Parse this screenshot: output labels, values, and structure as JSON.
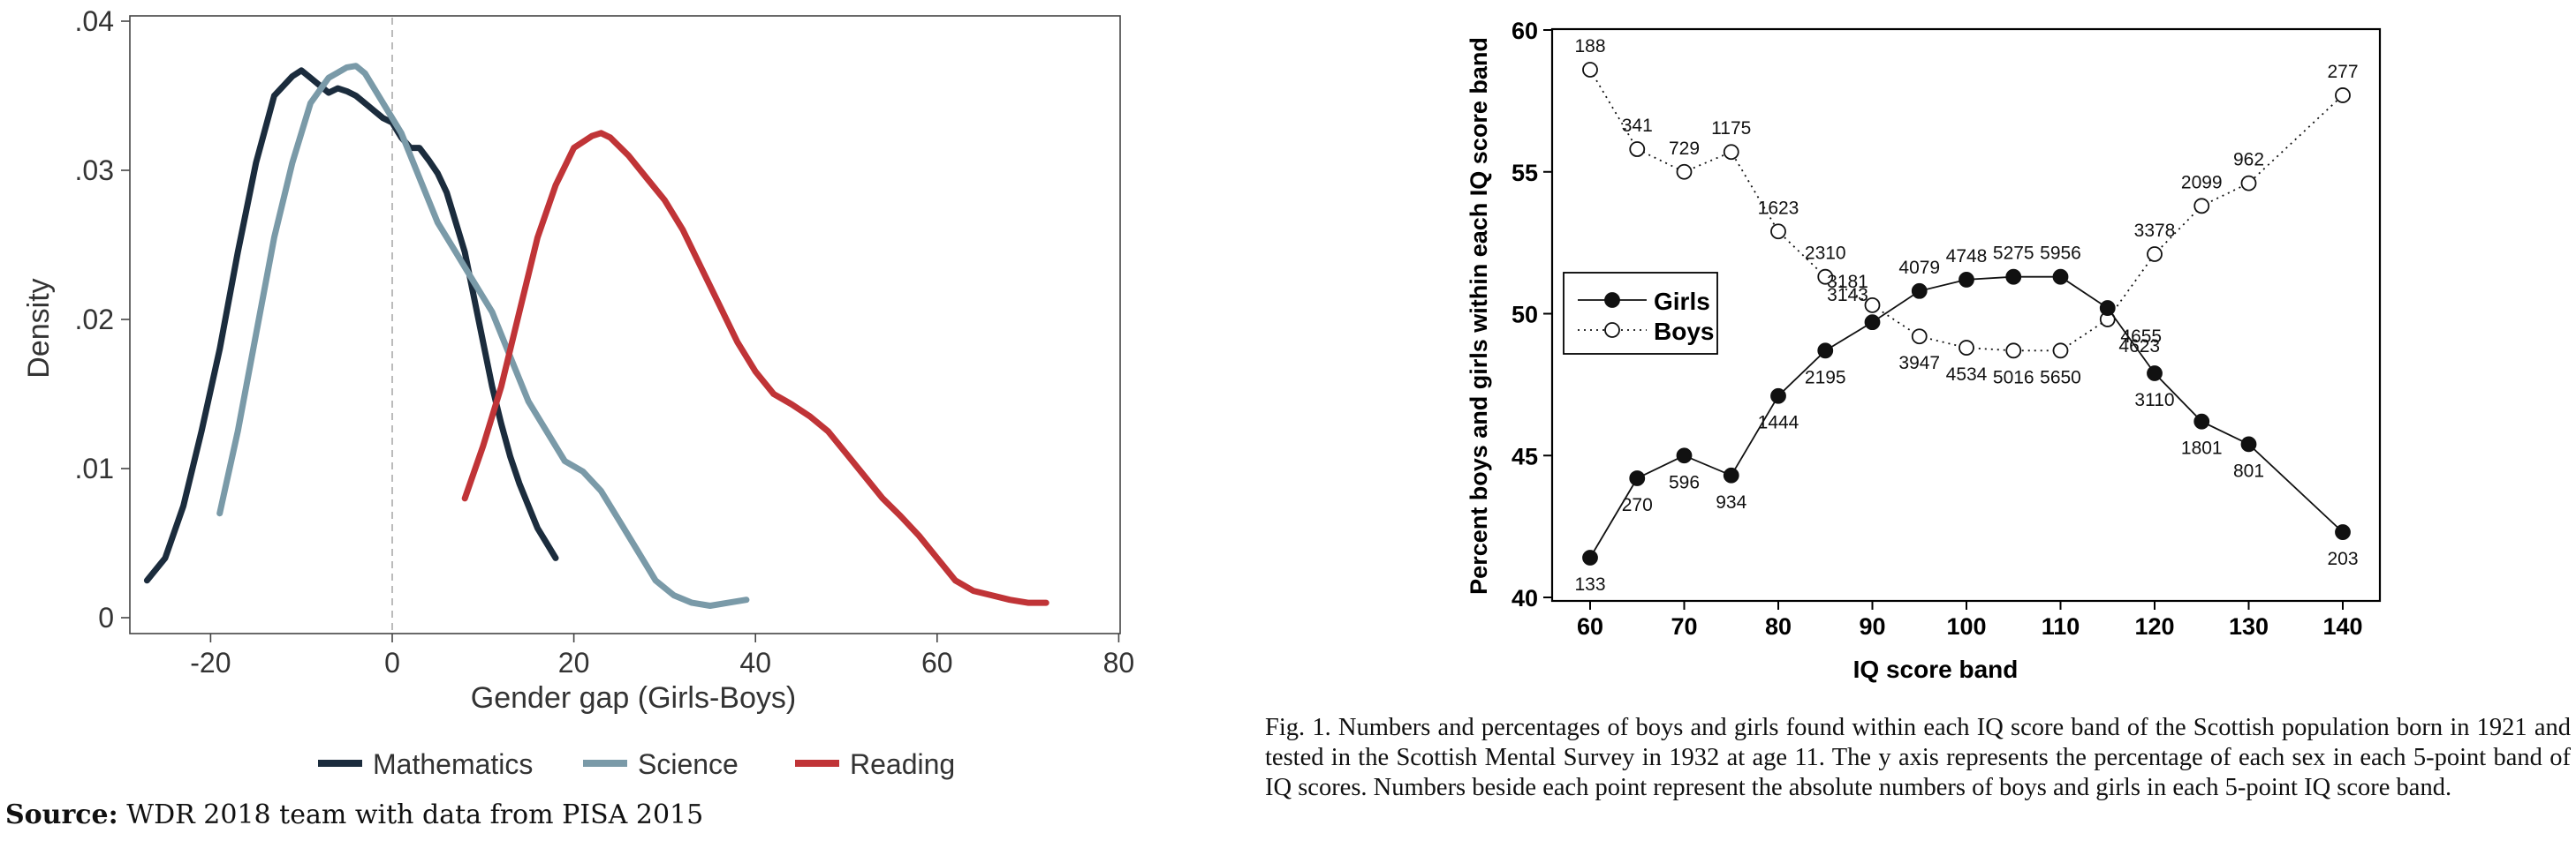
{
  "chart_data": [
    {
      "type": "line",
      "title": "",
      "xlabel": "Gender gap (Girls-Boys)",
      "ylabel": "Density",
      "xlim": [
        -30,
        80
      ],
      "ylim": [
        -0.001,
        0.0405
      ],
      "x_ticks": [
        -20,
        0,
        20,
        40,
        60,
        80
      ],
      "x_tick_labels": [
        "-20",
        "0",
        "20",
        "40",
        "60",
        "80"
      ],
      "y_ticks": [
        0,
        0.01,
        0.02,
        0.03,
        0.04
      ],
      "y_tick_labels": [
        "0",
        ".01",
        ".02",
        ".03",
        ".04"
      ],
      "reference_line_x": 0,
      "legend_position": "bottom",
      "series": [
        {
          "name": "Mathematics",
          "color": "#1b2c3d",
          "x": [
            -27,
            -25,
            -23,
            -21,
            -19,
            -17,
            -15,
            -13,
            -11,
            -10,
            -9,
            -8,
            -7,
            -6,
            -5,
            -4,
            -3,
            -2,
            -1,
            0,
            1,
            2,
            3,
            4,
            5,
            6,
            7,
            8,
            9,
            10,
            11,
            12,
            13,
            14,
            15,
            16,
            17,
            18
          ],
          "y": [
            0.0025,
            0.004,
            0.0075,
            0.0125,
            0.018,
            0.0245,
            0.0305,
            0.035,
            0.0363,
            0.0367,
            0.0362,
            0.0357,
            0.0352,
            0.0355,
            0.0353,
            0.035,
            0.0345,
            0.034,
            0.0335,
            0.0332,
            0.0322,
            0.0315,
            0.0315,
            0.0307,
            0.0298,
            0.0285,
            0.0265,
            0.0245,
            0.0215,
            0.0185,
            0.0155,
            0.013,
            0.0108,
            0.009,
            0.0075,
            0.006,
            0.005,
            0.004
          ]
        },
        {
          "name": "Science",
          "color": "#7a9aa8",
          "x": [
            -19,
            -17,
            -15,
            -13,
            -11,
            -9,
            -7,
            -5,
            -4,
            -3,
            -1,
            1,
            3,
            5,
            7,
            9,
            11,
            13,
            15,
            17,
            19,
            21,
            23,
            25,
            27,
            29,
            31,
            33,
            35,
            37,
            39
          ],
          "y": [
            0.007,
            0.0125,
            0.019,
            0.0255,
            0.0305,
            0.0345,
            0.0362,
            0.0369,
            0.037,
            0.0365,
            0.0345,
            0.0325,
            0.0295,
            0.0265,
            0.0245,
            0.0225,
            0.0205,
            0.0175,
            0.0145,
            0.0125,
            0.0105,
            0.0098,
            0.0085,
            0.0065,
            0.0045,
            0.0025,
            0.0015,
            0.001,
            0.0008,
            0.001,
            0.0012
          ]
        },
        {
          "name": "Reading",
          "color": "#c03437",
          "x": [
            8,
            10,
            12,
            14,
            16,
            18,
            20,
            22,
            23,
            24,
            26,
            28,
            30,
            32,
            34,
            36,
            38,
            40,
            42,
            44,
            46,
            48,
            50,
            52,
            54,
            56,
            58,
            60,
            62,
            64,
            66,
            68,
            70,
            72
          ],
          "y": [
            0.008,
            0.0115,
            0.0155,
            0.0205,
            0.0255,
            0.029,
            0.0315,
            0.0323,
            0.0325,
            0.0322,
            0.031,
            0.0295,
            0.028,
            0.026,
            0.0235,
            0.021,
            0.0185,
            0.0165,
            0.015,
            0.0143,
            0.0135,
            0.0125,
            0.011,
            0.0095,
            0.008,
            0.0068,
            0.0055,
            0.004,
            0.0025,
            0.0018,
            0.0015,
            0.0012,
            0.001,
            0.001
          ]
        }
      ]
    },
    {
      "type": "line",
      "title": "",
      "xlabel": "IQ score band",
      "ylabel": "Percent boys and girls within each IQ score band",
      "xlim": [
        60,
        140
      ],
      "ylim": [
        40,
        60
      ],
      "x_ticks": [
        60,
        70,
        80,
        90,
        100,
        110,
        120,
        130,
        140
      ],
      "x_tick_labels": [
        "60",
        "70",
        "80",
        "90",
        "100",
        "110",
        "120",
        "130",
        "140"
      ],
      "y_ticks": [
        40,
        45,
        50,
        55,
        60
      ],
      "y_tick_labels": [
        "40",
        "45",
        "50",
        "55",
        "60"
      ],
      "legend_position": "left-middle",
      "series": [
        {
          "name": "Girls",
          "marker": "filled-circle",
          "line_style": "solid",
          "x": [
            60,
            65,
            70,
            75,
            80,
            85,
            90,
            95,
            100,
            105,
            110,
            115,
            120,
            125,
            130,
            140
          ],
          "y": [
            41.4,
            44.2,
            45.0,
            44.3,
            47.1,
            48.7,
            49.7,
            50.8,
            51.2,
            51.3,
            51.3,
            50.2,
            47.9,
            46.2,
            45.4,
            42.3
          ],
          "labels": [
            "133",
            "270",
            "596",
            "934",
            "1444",
            "2195",
            "3143",
            "4079",
            "4748",
            "5275",
            "5956",
            "4655",
            "3110",
            "1801",
            "801",
            "203"
          ]
        },
        {
          "name": "Boys",
          "marker": "open-circle",
          "line_style": "dotted",
          "x": [
            60,
            65,
            70,
            75,
            80,
            85,
            90,
            95,
            100,
            105,
            110,
            115,
            120,
            125,
            130,
            140
          ],
          "y": [
            58.6,
            55.8,
            55.0,
            55.7,
            52.9,
            51.3,
            50.3,
            49.2,
            48.8,
            48.7,
            48.7,
            49.8,
            52.1,
            53.8,
            54.6,
            57.7
          ],
          "labels": [
            "188",
            "341",
            "729",
            "1175",
            "1623",
            "2310",
            "3181",
            "3947",
            "4534",
            "5016",
            "5650",
            "4623",
            "3378",
            "2099",
            "962",
            "277"
          ]
        }
      ]
    }
  ],
  "source": {
    "prefix": "Source:",
    "text": " WDR 2018 team with data from PISA 2015"
  },
  "caption": "Fig. 1. Numbers and percentages of boys and girls found within each IQ score band of the Scottish population born in 1921 and tested in the Scottish Mental Survey in 1932 at age 11. The y axis represents the percentage of each sex in each 5-point band of IQ scores. Numbers beside each point represent the absolute numbers of boys and girls in each 5-point IQ score band."
}
